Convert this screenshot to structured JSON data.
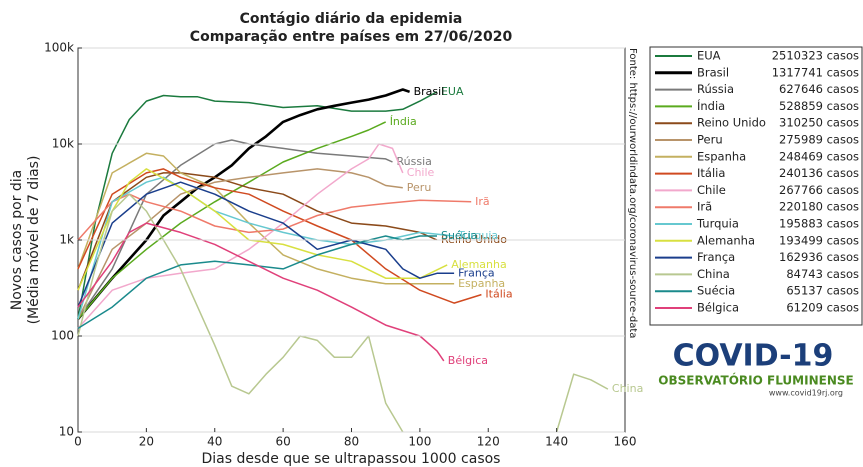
{
  "chart_data": {
    "type": "line",
    "title": "Contágio diário da epidemia",
    "subtitle": "Comparação entre países em 27/06/2020",
    "x_label": "Dias desde que se ultrapassou 1000 casos",
    "y_label": "Novos casos por dia",
    "y_label_2": "(Média móvel de 7 dias)",
    "source": "Fonte: https://ourworldindata.org/coronavirus-source-data",
    "xlim": [
      0,
      160
    ],
    "xticks": [
      0,
      20,
      40,
      60,
      80,
      100,
      120,
      140,
      160
    ],
    "ylim": [
      10,
      100000
    ],
    "y_scale": "log",
    "yticks": [
      10,
      100,
      {
        "value": 1000,
        "label": "1k"
      },
      {
        "value": 10000,
        "label": "10k"
      },
      {
        "value": 100000,
        "label": "100k"
      }
    ],
    "grid": true,
    "series": [
      {
        "name": "EUA",
        "color": "#1b7a3e",
        "total_label": "2510323 casos",
        "x": [
          0,
          5,
          10,
          15,
          20,
          25,
          30,
          35,
          40,
          50,
          60,
          70,
          80,
          90,
          95,
          100,
          105
        ],
        "values": [
          150,
          1500,
          8000,
          18000,
          28000,
          32000,
          31000,
          31000,
          28000,
          27000,
          24000,
          25000,
          22000,
          22000,
          23000,
          28000,
          35000
        ]
      },
      {
        "name": "Brasil",
        "color": "#000000",
        "total_label": "1317741 casos",
        "x": [
          0,
          10,
          20,
          25,
          30,
          35,
          40,
          45,
          50,
          55,
          60,
          65,
          70,
          75,
          80,
          85,
          90,
          95,
          97
        ],
        "values": [
          150,
          400,
          1000,
          1800,
          2500,
          3500,
          4500,
          6000,
          9000,
          12000,
          17000,
          20000,
          23000,
          25000,
          27000,
          29000,
          32000,
          37000,
          35000
        ]
      },
      {
        "name": "Rússia",
        "color": "#7a7a7a",
        "total_label": "627646 casos",
        "x": [
          0,
          10,
          20,
          30,
          40,
          45,
          50,
          60,
          70,
          80,
          90,
          92
        ],
        "values": [
          150,
          500,
          3000,
          6000,
          10000,
          11000,
          10000,
          9000,
          8000,
          7500,
          7000,
          6500
        ]
      },
      {
        "name": "Índia",
        "color": "#5aaa1e",
        "total_label": "528859 casos",
        "x": [
          0,
          10,
          20,
          30,
          40,
          50,
          60,
          70,
          80,
          85,
          90
        ],
        "values": [
          150,
          400,
          800,
          1500,
          2500,
          4000,
          6500,
          9000,
          12000,
          14000,
          17000
        ]
      },
      {
        "name": "Reino Unido",
        "color": "#8b4a1a",
        "total_label": "310250 casos",
        "x": [
          0,
          10,
          20,
          25,
          30,
          40,
          50,
          60,
          70,
          80,
          90,
          100,
          105
        ],
        "values": [
          300,
          2500,
          4500,
          5000,
          5000,
          4500,
          3500,
          3000,
          2000,
          1500,
          1400,
          1200,
          1000
        ]
      },
      {
        "name": "Peru",
        "color": "#b8946a",
        "total_label": "275989 casos",
        "x": [
          0,
          10,
          20,
          30,
          40,
          50,
          60,
          70,
          80,
          85,
          90,
          95
        ],
        "values": [
          150,
          800,
          1500,
          3000,
          4000,
          4500,
          5000,
          5500,
          5000,
          4500,
          3700,
          3500
        ]
      },
      {
        "name": "Espanha",
        "color": "#c4b060",
        "total_label": "248469 casos",
        "x": [
          0,
          10,
          20,
          25,
          30,
          40,
          50,
          60,
          70,
          80,
          90,
          100,
          110
        ],
        "values": [
          500,
          5000,
          8000,
          7500,
          5000,
          3500,
          1500,
          700,
          500,
          400,
          350,
          350,
          350
        ]
      },
      {
        "name": "Itália",
        "color": "#d04a20",
        "total_label": "240136 casos",
        "x": [
          0,
          10,
          20,
          25,
          30,
          40,
          50,
          60,
          70,
          80,
          90,
          100,
          110,
          118
        ],
        "values": [
          500,
          3000,
          5000,
          5500,
          4500,
          3500,
          3000,
          2000,
          1400,
          1000,
          500,
          300,
          220,
          270
        ]
      },
      {
        "name": "Chile",
        "color": "#f2a8cc",
        "total_label": "267766 casos",
        "x": [
          0,
          10,
          20,
          30,
          40,
          50,
          60,
          70,
          80,
          85,
          88,
          92,
          95
        ],
        "values": [
          120,
          300,
          400,
          450,
          500,
          800,
          1500,
          3000,
          5500,
          7000,
          10000,
          9000,
          5000
        ]
      },
      {
        "name": "Irã",
        "color": "#ef7a6a",
        "total_label": "220180 casos",
        "x": [
          0,
          10,
          15,
          20,
          30,
          40,
          50,
          60,
          70,
          80,
          90,
          100,
          115
        ],
        "values": [
          1000,
          2500,
          3000,
          2500,
          2000,
          1400,
          1200,
          1300,
          1800,
          2200,
          2400,
          2600,
          2500
        ]
      },
      {
        "name": "Turquia",
        "color": "#66c8d0",
        "total_label": "195883 casos",
        "x": [
          0,
          10,
          20,
          25,
          30,
          40,
          50,
          60,
          70,
          80,
          90,
          100,
          110
        ],
        "values": [
          150,
          2500,
          4000,
          4500,
          3500,
          2000,
          1500,
          1200,
          1000,
          900,
          1000,
          1200,
          1100
        ]
      },
      {
        "name": "Alemanha",
        "color": "#d8e040",
        "total_label": "193499 casos",
        "x": [
          0,
          10,
          15,
          20,
          30,
          40,
          50,
          60,
          70,
          80,
          90,
          100,
          108
        ],
        "values": [
          300,
          2000,
          4000,
          5500,
          3500,
          2000,
          1000,
          900,
          700,
          600,
          400,
          400,
          550
        ]
      },
      {
        "name": "França",
        "color": "#1a3e8c",
        "total_label": "162936 casos",
        "x": [
          0,
          10,
          20,
          30,
          40,
          50,
          60,
          65,
          70,
          80,
          90,
          95,
          100,
          105,
          110
        ],
        "values": [
          200,
          1500,
          3000,
          4000,
          3000,
          2000,
          1500,
          1100,
          800,
          1000,
          800,
          500,
          400,
          450,
          450
        ]
      },
      {
        "name": "China",
        "color": "#b8c890",
        "total_label": "84743 casos",
        "x": [
          0,
          5,
          10,
          15,
          20,
          25,
          30,
          35,
          40,
          45,
          50,
          55,
          60,
          65,
          70,
          75,
          80,
          85,
          90,
          95,
          120,
          140,
          145,
          150,
          155
        ],
        "values": [
          100,
          500,
          2000,
          3000,
          2000,
          1000,
          500,
          200,
          80,
          30,
          25,
          40,
          60,
          100,
          90,
          60,
          60,
          100,
          20,
          10,
          null,
          10,
          40,
          35,
          28
        ]
      },
      {
        "name": "Suécia",
        "color": "#1a8a8c",
        "total_label": "65137 casos",
        "x": [
          0,
          10,
          20,
          30,
          40,
          50,
          60,
          70,
          80,
          90,
          95,
          100,
          105
        ],
        "values": [
          120,
          200,
          400,
          550,
          600,
          550,
          500,
          700,
          900,
          1100,
          1000,
          1100,
          1100
        ]
      },
      {
        "name": "Bélgica",
        "color": "#e0407a",
        "total_label": "61209 casos",
        "x": [
          0,
          10,
          15,
          20,
          30,
          40,
          50,
          60,
          70,
          80,
          90,
          100,
          105,
          107
        ],
        "values": [
          200,
          600,
          1200,
          1500,
          1200,
          900,
          600,
          400,
          300,
          200,
          130,
          100,
          70,
          55
        ]
      }
    ]
  },
  "logo": {
    "title": "COVID-19",
    "subtitle": "OBSERVATÓRIO FLUMINENSE",
    "url": "www.covid19rj.org"
  }
}
